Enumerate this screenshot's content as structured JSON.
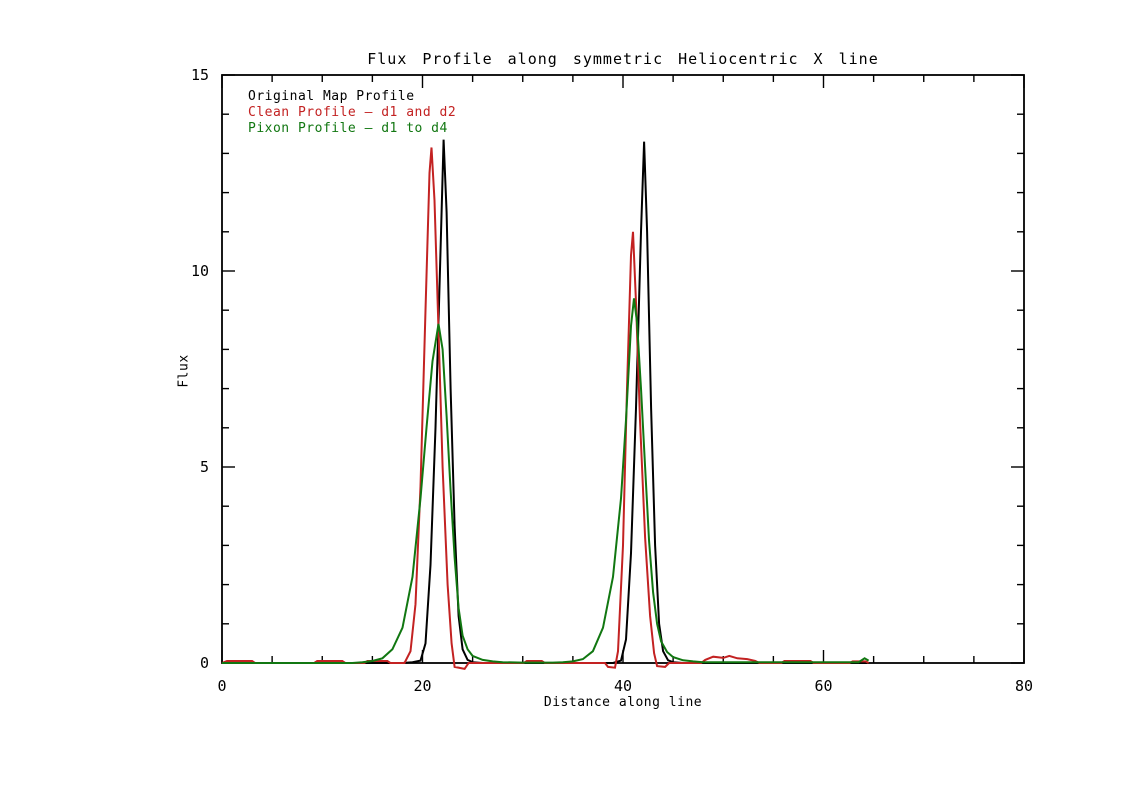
{
  "window": {
    "background": "#ffffff"
  },
  "chart_data": {
    "type": "line",
    "title": "Flux Profile along symmetric Heliocentric X line",
    "xlabel": "Distance along line",
    "ylabel": "Flux",
    "xlim": [
      0,
      80
    ],
    "ylim": [
      0,
      15
    ],
    "x_major_ticks": [
      0,
      20,
      40,
      60,
      80
    ],
    "x_minor_step": 5,
    "y_major_ticks": [
      0,
      5,
      10,
      15
    ],
    "y_minor_step": 1,
    "grid": false,
    "legend_position": "top-left-inside",
    "axis_color": "#000000",
    "series": [
      {
        "name": "Original Map Profile",
        "color": "#000000",
        "points": [
          [
            0,
            0
          ],
          [
            5,
            0
          ],
          [
            10,
            0
          ],
          [
            15,
            0
          ],
          [
            18,
            0
          ],
          [
            19,
            0.02
          ],
          [
            19.8,
            0.06
          ],
          [
            20.3,
            0.5
          ],
          [
            20.8,
            2.5
          ],
          [
            21.3,
            6.0
          ],
          [
            21.8,
            10.5
          ],
          [
            22.1,
            13.35
          ],
          [
            22.4,
            11.5
          ],
          [
            22.8,
            7.0
          ],
          [
            23.2,
            3.5
          ],
          [
            23.6,
            1.2
          ],
          [
            24,
            0.35
          ],
          [
            24.5,
            0.08
          ],
          [
            25,
            0.02
          ],
          [
            26,
            0
          ],
          [
            30,
            0
          ],
          [
            35,
            0
          ],
          [
            39,
            0
          ],
          [
            39.8,
            0.06
          ],
          [
            40.3,
            0.6
          ],
          [
            40.8,
            2.8
          ],
          [
            41.3,
            6.5
          ],
          [
            41.8,
            11.0
          ],
          [
            42.1,
            13.3
          ],
          [
            42.4,
            11.0
          ],
          [
            42.8,
            6.5
          ],
          [
            43.2,
            3.0
          ],
          [
            43.6,
            1.0
          ],
          [
            44,
            0.3
          ],
          [
            44.5,
            0.07
          ],
          [
            45,
            0.02
          ],
          [
            46,
            0
          ],
          [
            50,
            0
          ],
          [
            55,
            0
          ],
          [
            60,
            0
          ],
          [
            64.5,
            0
          ]
        ]
      },
      {
        "name": "Clean Profile — d1 and d2",
        "color": "#c32222",
        "points": [
          [
            0,
            0
          ],
          [
            0.5,
            0.05
          ],
          [
            3,
            0.05
          ],
          [
            3.3,
            0
          ],
          [
            9.2,
            0
          ],
          [
            9.5,
            0.05
          ],
          [
            12,
            0.05
          ],
          [
            12.3,
            0
          ],
          [
            14.2,
            0
          ],
          [
            14.5,
            0.05
          ],
          [
            16.5,
            0.05
          ],
          [
            16.8,
            0
          ],
          [
            18.2,
            0
          ],
          [
            18.8,
            0.3
          ],
          [
            19.3,
            1.5
          ],
          [
            19.8,
            4.5
          ],
          [
            20.3,
            9.0
          ],
          [
            20.7,
            12.5
          ],
          [
            20.9,
            13.15
          ],
          [
            21.2,
            11.8
          ],
          [
            21.6,
            8.5
          ],
          [
            22,
            5.0
          ],
          [
            22.5,
            2.0
          ],
          [
            22.9,
            0.5
          ],
          [
            23.2,
            -0.1
          ],
          [
            24.2,
            -0.15
          ],
          [
            24.6,
            0
          ],
          [
            27.5,
            0
          ],
          [
            30.1,
            0
          ],
          [
            30.4,
            0.05
          ],
          [
            31.9,
            0.05
          ],
          [
            32.2,
            0
          ],
          [
            38.2,
            0
          ],
          [
            38.5,
            -0.1
          ],
          [
            39.2,
            -0.12
          ],
          [
            39.5,
            0.3
          ],
          [
            40,
            3.0
          ],
          [
            40.4,
            7.0
          ],
          [
            40.8,
            10.4
          ],
          [
            41,
            11.0
          ],
          [
            41.3,
            9.2
          ],
          [
            41.7,
            6.2
          ],
          [
            42.2,
            3.2
          ],
          [
            42.7,
            1.2
          ],
          [
            43.1,
            0.25
          ],
          [
            43.4,
            -0.08
          ],
          [
            44.2,
            -0.1
          ],
          [
            44.6,
            0
          ],
          [
            47.8,
            0
          ],
          [
            48.2,
            0.08
          ],
          [
            49,
            0.16
          ],
          [
            50,
            0.13
          ],
          [
            50.6,
            0.18
          ],
          [
            51.4,
            0.12
          ],
          [
            52.4,
            0.1
          ],
          [
            53.2,
            0.05
          ],
          [
            53.6,
            0
          ],
          [
            55.8,
            0
          ],
          [
            56.1,
            0.05
          ],
          [
            58.7,
            0.05
          ],
          [
            59,
            0
          ],
          [
            62.6,
            0
          ],
          [
            62.9,
            0.04
          ],
          [
            64.2,
            0.04
          ],
          [
            64.5,
            0
          ]
        ]
      },
      {
        "name": "Pixon Profile — d1 to d4",
        "color": "#117711",
        "points": [
          [
            0,
            0
          ],
          [
            5,
            0
          ],
          [
            10,
            0
          ],
          [
            13,
            0
          ],
          [
            14,
            0.02
          ],
          [
            15,
            0.05
          ],
          [
            16,
            0.12
          ],
          [
            17,
            0.35
          ],
          [
            18,
            0.9
          ],
          [
            19,
            2.2
          ],
          [
            19.8,
            4.2
          ],
          [
            20.4,
            6.0
          ],
          [
            21,
            7.7
          ],
          [
            21.6,
            8.65
          ],
          [
            22,
            8.0
          ],
          [
            22.4,
            6.3
          ],
          [
            22.8,
            4.4
          ],
          [
            23.2,
            2.7
          ],
          [
            23.6,
            1.4
          ],
          [
            24,
            0.7
          ],
          [
            24.5,
            0.35
          ],
          [
            25,
            0.18
          ],
          [
            26,
            0.08
          ],
          [
            27,
            0.04
          ],
          [
            28,
            0.02
          ],
          [
            30,
            0.01
          ],
          [
            33,
            0.01
          ],
          [
            34,
            0.02
          ],
          [
            35,
            0.04
          ],
          [
            36,
            0.1
          ],
          [
            37,
            0.3
          ],
          [
            38,
            0.9
          ],
          [
            39,
            2.2
          ],
          [
            39.8,
            4.2
          ],
          [
            40.3,
            6.2
          ],
          [
            40.8,
            8.6
          ],
          [
            41.1,
            9.3
          ],
          [
            41.4,
            8.7
          ],
          [
            41.8,
            7.0
          ],
          [
            42.2,
            5.0
          ],
          [
            42.6,
            3.1
          ],
          [
            43,
            1.8
          ],
          [
            43.4,
            1.0
          ],
          [
            43.8,
            0.55
          ],
          [
            44.4,
            0.28
          ],
          [
            45,
            0.15
          ],
          [
            46,
            0.07
          ],
          [
            47,
            0.04
          ],
          [
            48,
            0.02
          ],
          [
            52,
            0.02
          ],
          [
            56,
            0.02
          ],
          [
            60,
            0.02
          ],
          [
            63.5,
            0.02
          ],
          [
            64.1,
            0.12
          ],
          [
            64.5,
            0.06
          ]
        ]
      }
    ]
  }
}
